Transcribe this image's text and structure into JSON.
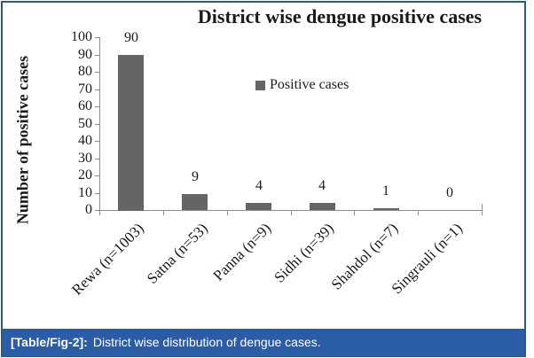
{
  "figure": {
    "caption_label": "[Table/Fig-2]:",
    "caption_text": "District wise distribution of dengue cases.",
    "caption_bg": "#2b5ca6",
    "frame_border_color": "#2e5a7d"
  },
  "chart_data": {
    "type": "bar",
    "title": "District wise dengue positive cases",
    "xlabel": "",
    "ylabel": "Number of positive cases",
    "categories": [
      "Rewa (n=1003)",
      "Satna (n=53)",
      "Panna (n=9)",
      "Sidhi (n=39)",
      "Shahdol (n=7)",
      "Singrauli (n=1)"
    ],
    "values": [
      90,
      9,
      4,
      4,
      1,
      0
    ],
    "data_labels": [
      "90",
      "9",
      "4",
      "4",
      "1",
      "0"
    ],
    "series": [
      {
        "name": "Positive cases",
        "values": [
          90,
          9,
          4,
          4,
          1,
          0
        ]
      }
    ],
    "legend": {
      "label": "Positive cases",
      "position": "center-right",
      "visible": true
    },
    "ylim": [
      0,
      100
    ],
    "ytick_step": 10,
    "yticks": [
      0,
      10,
      20,
      30,
      40,
      50,
      60,
      70,
      80,
      90,
      100
    ],
    "grid": false,
    "bar_color": "#656565",
    "axis_color": "#8e8e8e",
    "text_color": "#1a1a1a"
  }
}
